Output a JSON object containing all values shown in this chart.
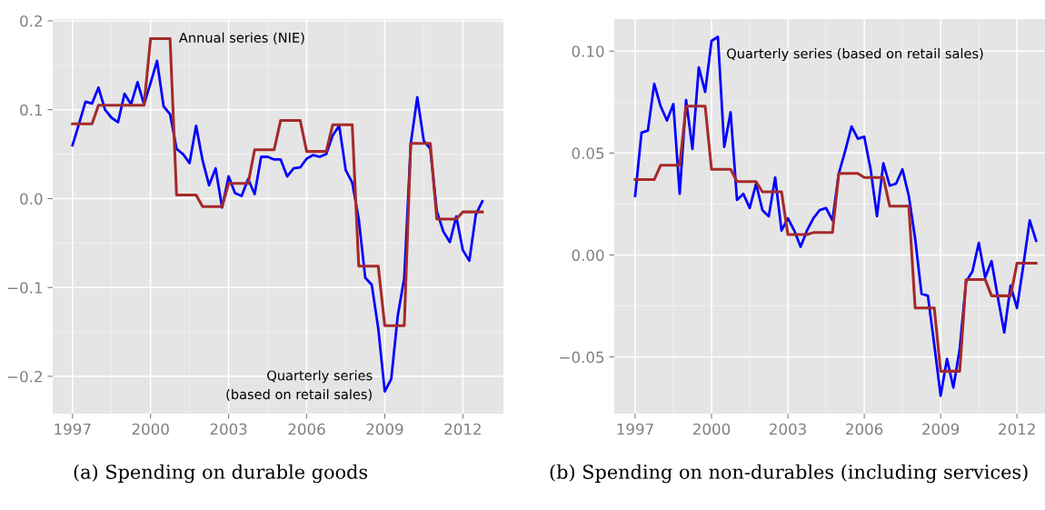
{
  "chart_data": [
    {
      "type": "line",
      "x": [
        1997.0,
        1997.25,
        1997.5,
        1997.75,
        1998.0,
        1998.25,
        1998.5,
        1998.75,
        1999.0,
        1999.25,
        1999.5,
        1999.75,
        2000.0,
        2000.25,
        2000.5,
        2000.75,
        2001.0,
        2001.25,
        2001.5,
        2001.75,
        2002.0,
        2002.25,
        2002.5,
        2002.75,
        2003.0,
        2003.25,
        2003.5,
        2003.75,
        2004.0,
        2004.25,
        2004.5,
        2004.75,
        2005.0,
        2005.25,
        2005.5,
        2005.75,
        2006.0,
        2006.25,
        2006.5,
        2006.75,
        2007.0,
        2007.25,
        2007.5,
        2007.75,
        2008.0,
        2008.25,
        2008.5,
        2008.75,
        2009.0,
        2009.25,
        2009.5,
        2009.75,
        2010.0,
        2010.25,
        2010.5,
        2010.75,
        2011.0,
        2011.25,
        2011.5,
        2011.75,
        2012.0,
        2012.25,
        2012.5,
        2012.75
      ],
      "series": [
        {
          "color": "#0000ff",
          "values": [
            0.06,
            0.084,
            0.109,
            0.107,
            0.125,
            0.1,
            0.091,
            0.086,
            0.118,
            0.106,
            0.131,
            0.106,
            0.13,
            0.155,
            0.104,
            0.095,
            0.056,
            0.05,
            0.04,
            0.082,
            0.043,
            0.015,
            0.034,
            -0.01,
            0.025,
            0.006,
            0.003,
            0.022,
            0.005,
            0.047,
            0.047,
            0.044,
            0.044,
            0.025,
            0.034,
            0.035,
            0.045,
            0.049,
            0.047,
            0.05,
            0.071,
            0.082,
            0.032,
            0.018,
            -0.023,
            -0.089,
            -0.097,
            -0.146,
            -0.217,
            -0.203,
            -0.132,
            -0.089,
            0.062,
            0.114,
            0.065,
            0.056,
            -0.014,
            -0.037,
            -0.049,
            -0.02,
            -0.058,
            -0.07,
            -0.018,
            -0.003
          ]
        },
        {
          "color": "#a52a2a",
          "values": [
            0.084,
            0.084,
            0.084,
            0.084,
            0.105,
            0.105,
            0.105,
            0.105,
            0.105,
            0.105,
            0.105,
            0.105,
            0.18,
            0.18,
            0.18,
            0.18,
            0.004,
            0.004,
            0.004,
            0.004,
            -0.009,
            -0.009,
            -0.009,
            -0.009,
            0.017,
            0.017,
            0.017,
            0.017,
            0.055,
            0.055,
            0.055,
            0.055,
            0.088,
            0.088,
            0.088,
            0.088,
            0.053,
            0.053,
            0.053,
            0.053,
            0.083,
            0.083,
            0.083,
            0.083,
            -0.076,
            -0.076,
            -0.076,
            -0.076,
            -0.143,
            -0.143,
            -0.143,
            -0.143,
            0.062,
            0.062,
            0.062,
            0.062,
            -0.023,
            -0.023,
            -0.023,
            -0.023,
            -0.015,
            -0.015,
            -0.015,
            -0.015
          ]
        }
      ],
      "xlim": [
        1996.24,
        2013.56
      ],
      "xticks": [
        1997,
        2000,
        2003,
        2006,
        2009,
        2012
      ],
      "ylim": [
        -0.242,
        0.202
      ],
      "yticks": [
        {
          "value": -0.2,
          "label": "−0.2"
        },
        {
          "value": -0.1,
          "label": "−0.1"
        },
        {
          "value": 0.0,
          "label": "0.0"
        },
        {
          "value": 0.1,
          "label": "0.1"
        },
        {
          "value": 0.2,
          "label": "0.2"
        }
      ],
      "grid": true,
      "legend": false,
      "annotations": [
        "Annual series (NIE)",
        "Quarterly series\n(based on retail sales)",
        "(a) Spending on durable goods"
      ]
    },
    {
      "type": "line",
      "x": [
        1997.0,
        1997.25,
        1997.5,
        1997.75,
        1998.0,
        1998.25,
        1998.5,
        1998.75,
        1999.0,
        1999.25,
        1999.5,
        1999.75,
        2000.0,
        2000.25,
        2000.5,
        2000.75,
        2001.0,
        2001.25,
        2001.5,
        2001.75,
        2002.0,
        2002.25,
        2002.5,
        2002.75,
        2003.0,
        2003.25,
        2003.5,
        2003.75,
        2004.0,
        2004.25,
        2004.5,
        2004.75,
        2005.0,
        2005.25,
        2005.5,
        2005.75,
        2006.0,
        2006.25,
        2006.5,
        2006.75,
        2007.0,
        2007.25,
        2007.5,
        2007.75,
        2008.0,
        2008.25,
        2008.5,
        2008.75,
        2009.0,
        2009.25,
        2009.5,
        2009.75,
        2010.0,
        2010.25,
        2010.5,
        2010.75,
        2011.0,
        2011.25,
        2011.5,
        2011.75,
        2012.0,
        2012.25,
        2012.5,
        2012.75
      ],
      "series": [
        {
          "color": "#0000ff",
          "values": [
            0.029,
            0.06,
            0.061,
            0.084,
            0.073,
            0.066,
            0.074,
            0.03,
            0.076,
            0.052,
            0.092,
            0.08,
            0.105,
            0.107,
            0.053,
            0.07,
            0.027,
            0.03,
            0.023,
            0.035,
            0.022,
            0.019,
            0.038,
            0.012,
            0.018,
            0.012,
            0.004,
            0.012,
            0.018,
            0.022,
            0.023,
            0.017,
            0.04,
            0.051,
            0.063,
            0.057,
            0.058,
            0.042,
            0.019,
            0.045,
            0.034,
            0.035,
            0.042,
            0.029,
            0.008,
            -0.019,
            -0.02,
            -0.044,
            -0.069,
            -0.051,
            -0.065,
            -0.046,
            -0.013,
            -0.008,
            0.006,
            -0.011,
            -0.003,
            -0.021,
            -0.038,
            -0.015,
            -0.026,
            -0.005,
            0.017,
            0.007
          ]
        },
        {
          "color": "#a52a2a",
          "values": [
            0.037,
            0.037,
            0.037,
            0.037,
            0.044,
            0.044,
            0.044,
            0.044,
            0.073,
            0.073,
            0.073,
            0.073,
            0.042,
            0.042,
            0.042,
            0.042,
            0.036,
            0.036,
            0.036,
            0.036,
            0.031,
            0.031,
            0.031,
            0.031,
            0.01,
            0.01,
            0.01,
            0.01,
            0.011,
            0.011,
            0.011,
            0.011,
            0.04,
            0.04,
            0.04,
            0.04,
            0.038,
            0.038,
            0.038,
            0.038,
            0.024,
            0.024,
            0.024,
            0.024,
            -0.026,
            -0.026,
            -0.026,
            -0.026,
            -0.057,
            -0.057,
            -0.057,
            -0.057,
            -0.012,
            -0.012,
            -0.012,
            -0.012,
            -0.02,
            -0.02,
            -0.02,
            -0.02,
            -0.004,
            -0.004,
            -0.004,
            -0.004
          ]
        }
      ],
      "xlim": [
        1996.18,
        2013.1
      ],
      "xticks": [
        1997,
        2000,
        2003,
        2006,
        2009,
        2012
      ],
      "ylim": [
        -0.0778,
        0.1157
      ],
      "yticks": [
        {
          "value": -0.05,
          "label": "−0.05"
        },
        {
          "value": 0.0,
          "label": "0.00"
        },
        {
          "value": 0.05,
          "label": "0.05"
        },
        {
          "value": 0.1,
          "label": "0.10"
        }
      ],
      "grid": true,
      "legend": false,
      "annotations": [
        "Quarterly series (based on retail sales)",
        "(b) Spending on non-durables (including services)"
      ]
    }
  ]
}
